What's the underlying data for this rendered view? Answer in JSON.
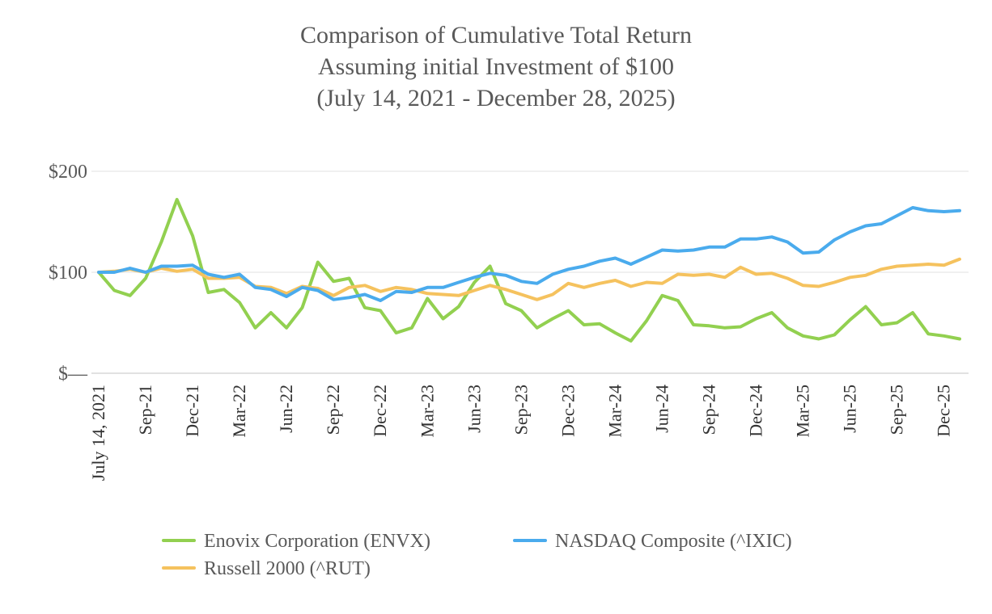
{
  "chart_data": {
    "type": "line",
    "title_lines": [
      "Comparison of Cumulative Total Return",
      "Assuming initial Investment of $100",
      "(July 14, 2021 - December 28, 2025)"
    ],
    "xlabel": "",
    "ylabel": "",
    "ylim": [
      0,
      200
    ],
    "y_ticks": [
      {
        "value": 200,
        "label": "$200"
      },
      {
        "value": 100,
        "label": "$100"
      },
      {
        "value": 0,
        "label": "$—"
      }
    ],
    "x_tick_labels": [
      {
        "index": 0,
        "label": "July 14, 2021"
      },
      {
        "index": 3,
        "label": "Sep-21"
      },
      {
        "index": 6,
        "label": "Dec-21"
      },
      {
        "index": 9,
        "label": "Mar-22"
      },
      {
        "index": 12,
        "label": "Jun-22"
      },
      {
        "index": 15,
        "label": "Sep-22"
      },
      {
        "index": 18,
        "label": "Dec-22"
      },
      {
        "index": 21,
        "label": "Mar-23"
      },
      {
        "index": 24,
        "label": "Jun-23"
      },
      {
        "index": 27,
        "label": "Sep-23"
      },
      {
        "index": 30,
        "label": "Dec-23"
      },
      {
        "index": 33,
        "label": "Mar-24"
      },
      {
        "index": 36,
        "label": "Jun-24"
      },
      {
        "index": 39,
        "label": "Sep-24"
      },
      {
        "index": 42,
        "label": "Dec-24"
      },
      {
        "index": 45,
        "label": "Mar-25"
      },
      {
        "index": 48,
        "label": "Jun-25"
      },
      {
        "index": 51,
        "label": "Sep-25"
      },
      {
        "index": 54,
        "label": "Dec-25"
      }
    ],
    "num_points": 56,
    "grid": true,
    "legend_position": "bottom",
    "series": [
      {
        "name": "Enovix Corporation (ENVX)",
        "color": "#92D050",
        "values": [
          100,
          82,
          77,
          94,
          130,
          172,
          136,
          80,
          83,
          70,
          45,
          60,
          45,
          65,
          110,
          91,
          94,
          65,
          62,
          40,
          45,
          74,
          54,
          66,
          90,
          106,
          69,
          62,
          45,
          54,
          62,
          48,
          49,
          40,
          32,
          52,
          77,
          72,
          48,
          47,
          45,
          46,
          54,
          60,
          45,
          37,
          34,
          38,
          53,
          66,
          48,
          50,
          60,
          39,
          37,
          34
        ]
      },
      {
        "name": "NASDAQ Composite (^IXIC)",
        "color": "#4AABED",
        "values": [
          100,
          100,
          104,
          100,
          106,
          106,
          107,
          98,
          95,
          98,
          85,
          83,
          76,
          85,
          82,
          73,
          75,
          78,
          72,
          81,
          80,
          85,
          85,
          90,
          95,
          99,
          97,
          91,
          89,
          98,
          103,
          106,
          111,
          114,
          108,
          115,
          122,
          121,
          122,
          125,
          125,
          133,
          133,
          135,
          130,
          119,
          120,
          132,
          140,
          146,
          148,
          156,
          164,
          161,
          160,
          161
        ]
      },
      {
        "name": "Russell 2000 (^RUT)",
        "color": "#F5C25E",
        "values": [
          100,
          101,
          103,
          100,
          104,
          101,
          103,
          94,
          94,
          95,
          86,
          85,
          79,
          86,
          84,
          77,
          85,
          87,
          81,
          85,
          83,
          79,
          78,
          77,
          82,
          87,
          83,
          78,
          73,
          78,
          89,
          85,
          89,
          92,
          86,
          90,
          89,
          98,
          97,
          98,
          95,
          105,
          98,
          99,
          94,
          87,
          86,
          90,
          95,
          97,
          103,
          106,
          107,
          108,
          107,
          113
        ]
      }
    ]
  },
  "legend": {
    "items": [
      {
        "name": "Enovix Corporation (ENVX)",
        "color": "#92D050"
      },
      {
        "name": "NASDAQ Composite (^IXIC)",
        "color": "#4AABED"
      },
      {
        "name": "Russell 2000 (^RUT)",
        "color": "#F5C25E"
      }
    ]
  }
}
